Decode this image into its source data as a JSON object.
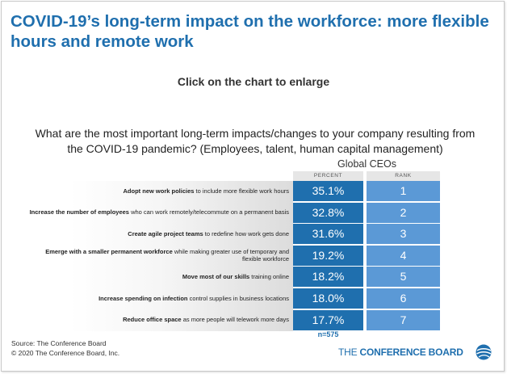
{
  "page": {
    "title": "COVID-19’s long-term impact on the workforce: more flexible hours and remote work",
    "enlarge_text": "Click on the chart to enlarge"
  },
  "chart_data": {
    "type": "table",
    "title": "What are the most important long-term impacts/changes to your company resulting from the COVID-19 pandemic? (Employees, talent, human capital management)",
    "group_header": "Global CEOs",
    "columns": [
      "PERCENT",
      "RANK"
    ],
    "rows": [
      {
        "label_bold": "Adopt new work policies",
        "label_rest": " to include more flexible work hours",
        "percent": 35.1,
        "percent_label": "35.1%",
        "rank": "1"
      },
      {
        "label_bold": "Increase the number of employees",
        "label_rest": " who can work remotely/telecommute on a permanent basis",
        "percent": 32.8,
        "percent_label": "32.8%",
        "rank": "2"
      },
      {
        "label_bold": "Create agile project teams",
        "label_rest": " to redefine how work gets done",
        "percent": 31.6,
        "percent_label": "31.6%",
        "rank": "3"
      },
      {
        "label_bold": "Emerge with a smaller permanent workforce",
        "label_rest": " while making greater use of temporary and flexible workforce",
        "percent": 19.2,
        "percent_label": "19.2%",
        "rank": "4"
      },
      {
        "label_bold": "Move most of our skills",
        "label_rest": " training online",
        "percent": 18.2,
        "percent_label": "18.2%",
        "rank": "5"
      },
      {
        "label_bold": "Increase spending on infection",
        "label_rest": " control supplies in business locations",
        "percent": 18.0,
        "percent_label": "18.0%",
        "rank": "6"
      },
      {
        "label_bold": "Reduce office space",
        "label_rest": " as more people will telework more days",
        "percent": 17.7,
        "percent_label": "17.7%",
        "rank": "7"
      }
    ],
    "n_label": "n=575",
    "colors": {
      "percent_cell": "#1f6fae",
      "rank_cell": "#5b99d6",
      "title_blue": "#1f6fae"
    }
  },
  "footer": {
    "source": "Source: The Conference Board",
    "copyright": "© 2020 The Conference Board, Inc.",
    "logo_prefix": "THE ",
    "logo_bold": "CONFERENCE BOARD"
  }
}
